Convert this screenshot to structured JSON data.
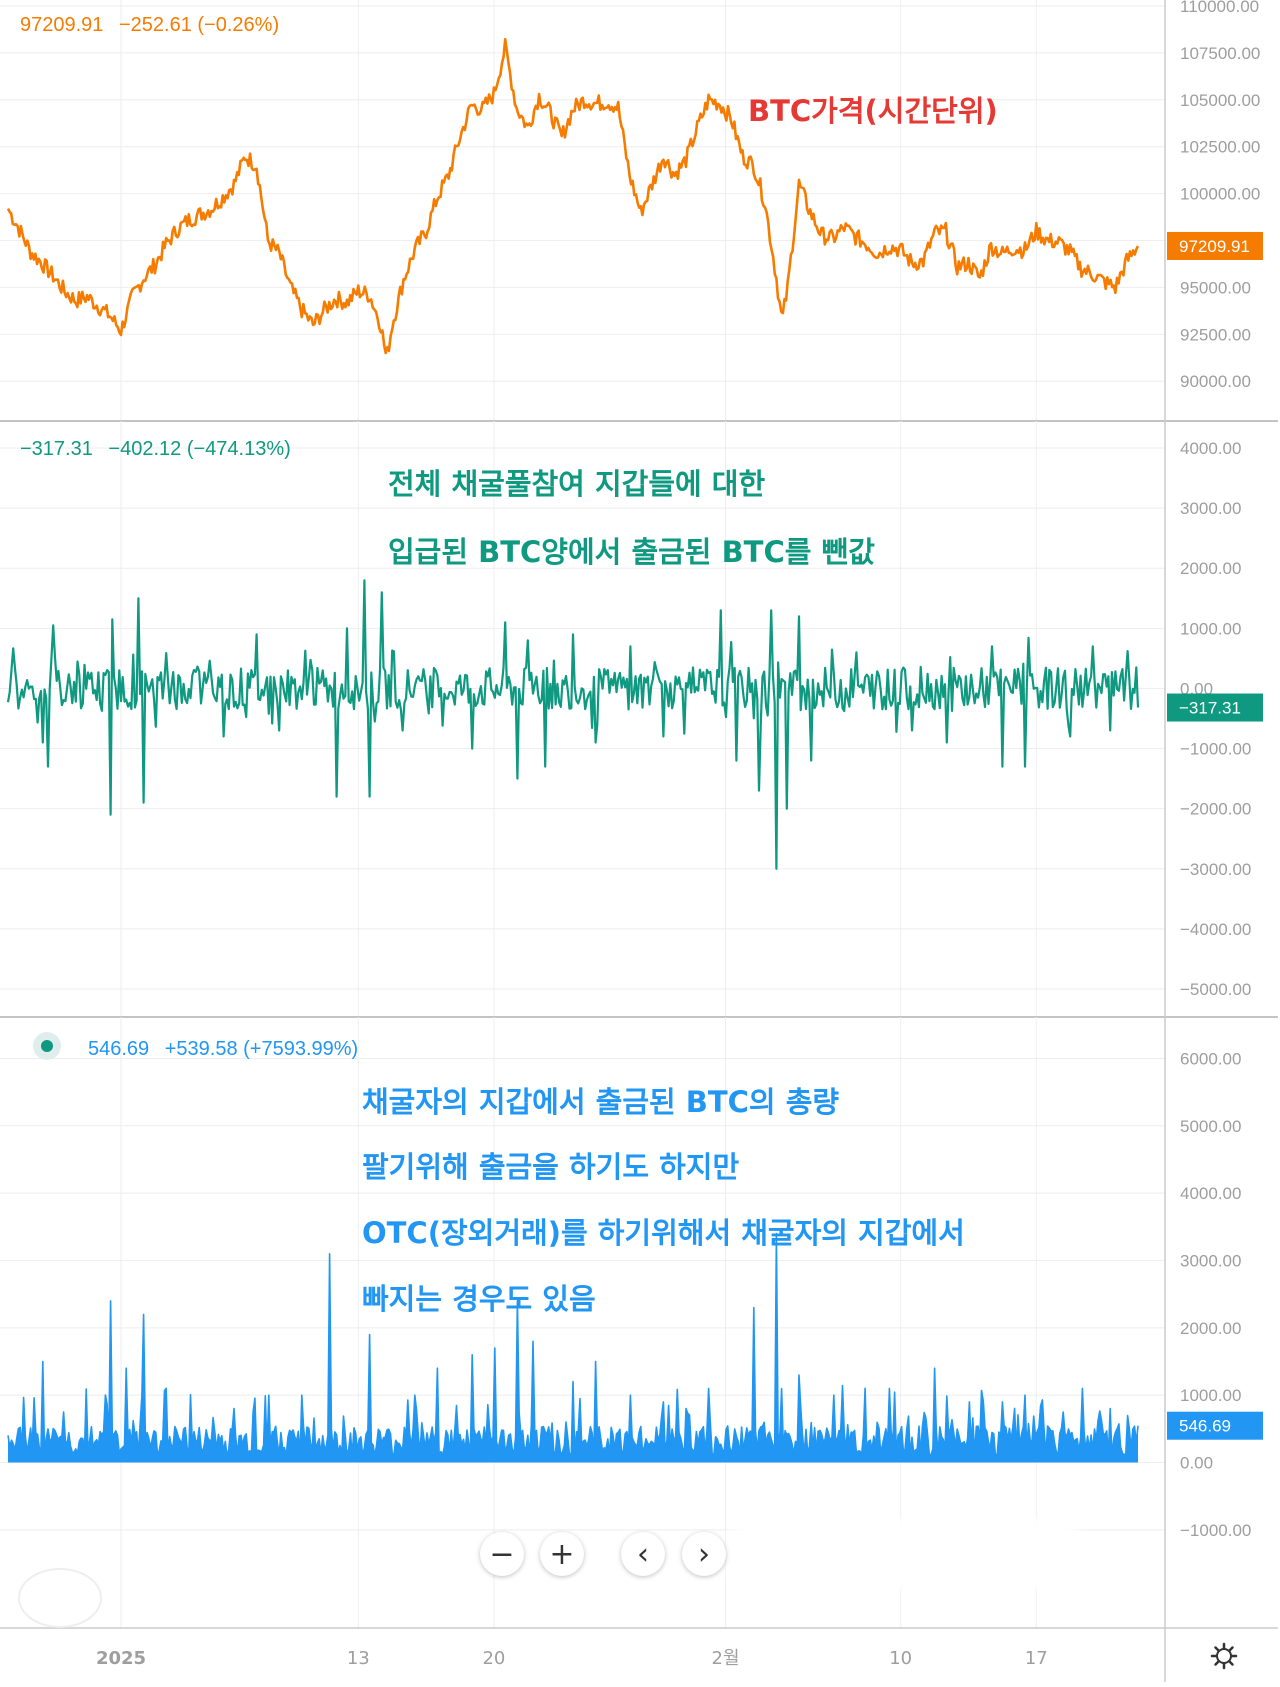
{
  "colors": {
    "price": "#f57c00",
    "netflow": "#0f9981",
    "outflow": "#2196f3",
    "annotation_red": "#e53935",
    "annotation_teal": "#0f9981",
    "annotation_blue": "#2196f3",
    "axis_text": "#9e9e9e",
    "grid": "#eeeeee",
    "divider": "#b0b0b0"
  },
  "panels": {
    "price": {
      "legend_value": "97209.91",
      "legend_change": "−252.61 (−0.26%)",
      "annotation": "BTC가격(시간단위)",
      "last_label": "97209.91"
    },
    "netflow": {
      "legend_value": "−317.31",
      "legend_change": "−402.12 (−474.13%)",
      "annotation_line1": "전체 채굴풀참여 지갑들에 대한",
      "annotation_line2": "입급된 BTC양에서 출금된 BTC를 뺀값",
      "last_label": "−317.31"
    },
    "outflow": {
      "legend_value": "546.69",
      "legend_change": "+539.58 (+7593.99%)",
      "annotation_line1": "채굴자의 지갑에서 출금된 BTC의 총량",
      "annotation_line2": "팔기위해 출금을 하기도 하지만",
      "annotation_line3": "OTC(장외거래)를 하기위해서 채굴자의 지갑에서",
      "annotation_line4": "빠지는 경우도 있음",
      "last_label": "546.69"
    }
  },
  "controls": {
    "zoom_out": "−",
    "zoom_in": "+",
    "scroll_left": "‹",
    "scroll_right": "›"
  },
  "chart_data": [
    {
      "type": "line",
      "name": "price",
      "ylabel": "",
      "ylim": [
        89000,
        110000
      ],
      "y_ticks": [
        "110000.00",
        "107500.00",
        "105000.00",
        "102500.00",
        "100000.00",
        "97500.00",
        "95000.00",
        "92500.00",
        "90000.00"
      ],
      "x_ticks": [
        "2025",
        "13",
        "20",
        "2월",
        "10",
        "17"
      ],
      "x_tick_pos": [
        0.1,
        0.31,
        0.43,
        0.635,
        0.79,
        0.91
      ],
      "points": [
        [
          0.0,
          99200
        ],
        [
          0.01,
          98100
        ],
        [
          0.02,
          96900
        ],
        [
          0.03,
          96300
        ],
        [
          0.04,
          95600
        ],
        [
          0.05,
          94800
        ],
        [
          0.06,
          94300
        ],
        [
          0.07,
          94500
        ],
        [
          0.08,
          94000
        ],
        [
          0.09,
          93500
        ],
        [
          0.1,
          92700
        ],
        [
          0.11,
          94500
        ],
        [
          0.12,
          95500
        ],
        [
          0.13,
          96200
        ],
        [
          0.14,
          97300
        ],
        [
          0.15,
          98100
        ],
        [
          0.16,
          98600
        ],
        [
          0.17,
          98900
        ],
        [
          0.18,
          99200
        ],
        [
          0.19,
          99800
        ],
        [
          0.2,
          100500
        ],
        [
          0.21,
          102000
        ],
        [
          0.22,
          101500
        ],
        [
          0.23,
          97500
        ],
        [
          0.24,
          96800
        ],
        [
          0.25,
          95000
        ],
        [
          0.26,
          93800
        ],
        [
          0.27,
          93000
        ],
        [
          0.28,
          93800
        ],
        [
          0.29,
          94400
        ],
        [
          0.3,
          94200
        ],
        [
          0.31,
          94800
        ],
        [
          0.32,
          94600
        ],
        [
          0.33,
          93000
        ],
        [
          0.335,
          91200
        ],
        [
          0.34,
          93000
        ],
        [
          0.35,
          95400
        ],
        [
          0.36,
          97000
        ],
        [
          0.37,
          98000
        ],
        [
          0.38,
          99800
        ],
        [
          0.39,
          101000
        ],
        [
          0.4,
          103000
        ],
        [
          0.41,
          104700
        ],
        [
          0.42,
          104500
        ],
        [
          0.43,
          105300
        ],
        [
          0.44,
          107800
        ],
        [
          0.45,
          104600
        ],
        [
          0.46,
          103500
        ],
        [
          0.47,
          105200
        ],
        [
          0.48,
          104300
        ],
        [
          0.49,
          103000
        ],
        [
          0.5,
          104500
        ],
        [
          0.51,
          105000
        ],
        [
          0.52,
          104800
        ],
        [
          0.53,
          104900
        ],
        [
          0.54,
          104600
        ],
        [
          0.55,
          101000
        ],
        [
          0.56,
          99000
        ],
        [
          0.57,
          100500
        ],
        [
          0.58,
          102000
        ],
        [
          0.59,
          101000
        ],
        [
          0.6,
          101800
        ],
        [
          0.61,
          103500
        ],
        [
          0.62,
          105000
        ],
        [
          0.63,
          104800
        ],
        [
          0.64,
          104000
        ],
        [
          0.65,
          102000
        ],
        [
          0.66,
          101500
        ],
        [
          0.67,
          99500
        ],
        [
          0.68,
          95500
        ],
        [
          0.685,
          93200
        ],
        [
          0.69,
          95000
        ],
        [
          0.7,
          100500
        ],
        [
          0.71,
          99000
        ],
        [
          0.72,
          97800
        ],
        [
          0.73,
          97600
        ],
        [
          0.74,
          98200
        ],
        [
          0.75,
          97700
        ],
        [
          0.76,
          97300
        ],
        [
          0.77,
          96800
        ],
        [
          0.78,
          97200
        ],
        [
          0.79,
          97000
        ],
        [
          0.8,
          96300
        ],
        [
          0.81,
          96400
        ],
        [
          0.82,
          97900
        ],
        [
          0.83,
          98000
        ],
        [
          0.84,
          96100
        ],
        [
          0.85,
          96300
        ],
        [
          0.86,
          95500
        ],
        [
          0.87,
          97200
        ],
        [
          0.88,
          96800
        ],
        [
          0.89,
          97100
        ],
        [
          0.9,
          97000
        ],
        [
          0.91,
          98000
        ],
        [
          0.92,
          97500
        ],
        [
          0.93,
          97400
        ],
        [
          0.94,
          96900
        ],
        [
          0.95,
          96000
        ],
        [
          0.96,
          95700
        ],
        [
          0.97,
          95300
        ],
        [
          0.98,
          95000
        ],
        [
          0.99,
          96400
        ],
        [
          1.0,
          97209.91
        ]
      ],
      "last_value": 97209.91
    },
    {
      "type": "line",
      "name": "netflow",
      "ylabel": "",
      "ylim": [
        -5200,
        4200
      ],
      "y_ticks": [
        "4000.00",
        "3000.00",
        "2000.00",
        "1000.00",
        "0.00",
        "−1000.00",
        "−2000.00",
        "−3000.00",
        "−4000.00",
        "−5000.00"
      ],
      "x_ticks": [
        "2025",
        "13",
        "20",
        "2월",
        "10",
        "17"
      ],
      "x_tick_pos": [
        0.1,
        0.31,
        0.43,
        0.635,
        0.79,
        0.91
      ],
      "spikes": [
        [
          0.03,
          -900
        ],
        [
          0.035,
          -1300
        ],
        [
          0.04,
          1050
        ],
        [
          0.09,
          -2100
        ],
        [
          0.092,
          1150
        ],
        [
          0.115,
          1500
        ],
        [
          0.12,
          -1900
        ],
        [
          0.19,
          -800
        ],
        [
          0.22,
          900
        ],
        [
          0.24,
          -700
        ],
        [
          0.29,
          -1800
        ],
        [
          0.3,
          1000
        ],
        [
          0.315,
          1800
        ],
        [
          0.32,
          -1800
        ],
        [
          0.33,
          1600
        ],
        [
          0.35,
          -700
        ],
        [
          0.41,
          -1000
        ],
        [
          0.44,
          1100
        ],
        [
          0.45,
          -1500
        ],
        [
          0.46,
          800
        ],
        [
          0.475,
          -1300
        ],
        [
          0.5,
          900
        ],
        [
          0.52,
          -900
        ],
        [
          0.55,
          700
        ],
        [
          0.58,
          -800
        ],
        [
          0.63,
          1300
        ],
        [
          0.645,
          -1200
        ],
        [
          0.665,
          -1700
        ],
        [
          0.675,
          1300
        ],
        [
          0.68,
          -3000
        ],
        [
          0.69,
          -2000
        ],
        [
          0.7,
          1200
        ],
        [
          0.71,
          -1200
        ],
        [
          0.75,
          600
        ],
        [
          0.8,
          -700
        ],
        [
          0.83,
          -900
        ],
        [
          0.87,
          700
        ],
        [
          0.88,
          -1300
        ],
        [
          0.9,
          -1300
        ],
        [
          0.94,
          -800
        ],
        [
          0.96,
          700
        ],
        [
          0.975,
          -700
        ]
      ],
      "last_value": -317.31
    },
    {
      "type": "area",
      "name": "outflow",
      "ylabel": "",
      "ylim": [
        -1700,
        6200
      ],
      "y_ticks": [
        "6000.00",
        "5000.00",
        "4000.00",
        "3000.00",
        "2000.00",
        "1000.00",
        "0.00",
        "−1000.00"
      ],
      "x_ticks": [
        "2025",
        "13",
        "20",
        "2월",
        "10",
        "17"
      ],
      "x_tick_pos": [
        0.1,
        0.31,
        0.43,
        0.635,
        0.79,
        0.91
      ],
      "spikes": [
        [
          0.03,
          1500
        ],
        [
          0.09,
          2400
        ],
        [
          0.105,
          1400
        ],
        [
          0.12,
          2200
        ],
        [
          0.14,
          1100
        ],
        [
          0.2,
          800
        ],
        [
          0.23,
          1000
        ],
        [
          0.26,
          1000
        ],
        [
          0.285,
          3100
        ],
        [
          0.32,
          1900
        ],
        [
          0.36,
          1000
        ],
        [
          0.38,
          1400
        ],
        [
          0.41,
          1600
        ],
        [
          0.43,
          1700
        ],
        [
          0.45,
          2400
        ],
        [
          0.465,
          1800
        ],
        [
          0.5,
          1200
        ],
        [
          0.52,
          1500
        ],
        [
          0.55,
          1000
        ],
        [
          0.58,
          900
        ],
        [
          0.6,
          800
        ],
        [
          0.62,
          1100
        ],
        [
          0.66,
          2300
        ],
        [
          0.68,
          3400
        ],
        [
          0.7,
          1300
        ],
        [
          0.73,
          1000
        ],
        [
          0.78,
          1100
        ],
        [
          0.82,
          1400
        ],
        [
          0.85,
          900
        ],
        [
          0.88,
          900
        ],
        [
          0.9,
          1000
        ],
        [
          0.95,
          1100
        ],
        [
          0.975,
          800
        ]
      ],
      "last_value": 546.69
    }
  ]
}
